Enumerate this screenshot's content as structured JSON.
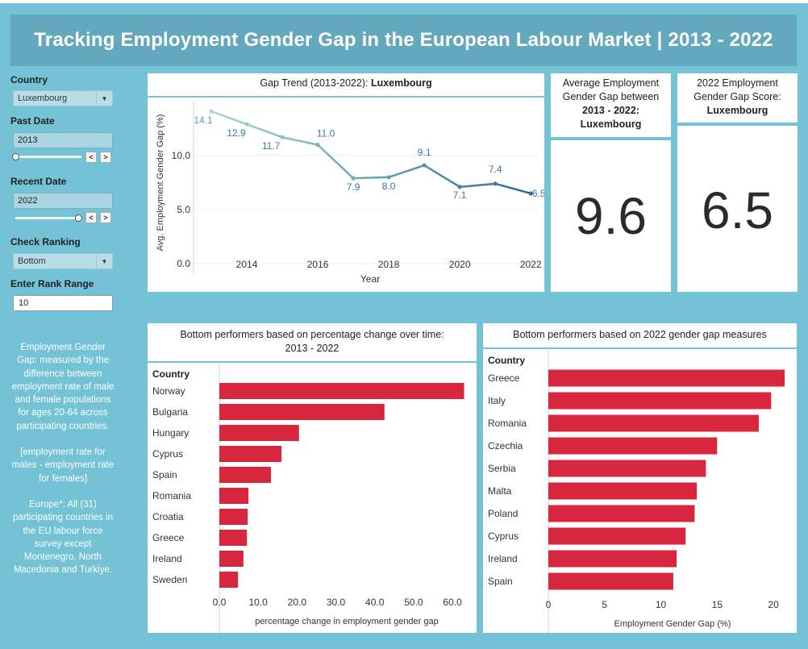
{
  "title": "Tracking Employment Gender Gap in the European Labour Market | 2013 - 2022",
  "filters": {
    "country_label": "Country",
    "country_value": "Luxembourg",
    "past_date_label": "Past Date",
    "past_date_value": "2013",
    "recent_date_label": "Recent Date",
    "recent_date_value": "2022",
    "ranking_label": "Check Ranking",
    "ranking_value": "Bottom",
    "rank_range_label": "Enter Rank Range",
    "rank_range_value": "10",
    "prev_symbol": "<",
    "next_symbol": ">",
    "caret_symbol": "▼"
  },
  "note": {
    "p1": "Employment Gender Gap: measured by the difference between employment rate of male and female populations for ages 20-64 across participating countries.",
    "p2": "[employment rate for males - employment rate for females]",
    "p3": "Europe*: All (31) participating countries in the EU labour force survey except Montenegro, North Macedonia and Turkiye."
  },
  "trend": {
    "title_prefix": "Gap Trend (2013-2022): ",
    "title_country": "Luxembourg"
  },
  "kpi_avg": {
    "title_line1": "Average Employment",
    "title_line2": "Gender Gap between",
    "title_line3": "2013 - 2022:",
    "title_line4": "Luxembourg",
    "value": "9.6"
  },
  "kpi_2022": {
    "title_line1": "2022 Employment",
    "title_line2": "Gender Gap Score:",
    "title_line3": "Luxembourg",
    "value": "6.5"
  },
  "bar_change": {
    "title_line1": "Bottom performers based on percentage change over time:",
    "title_line2": "2013 - 2022"
  },
  "bar_2022": {
    "title": "Bottom performers based on 2022  gender gap measures"
  },
  "colors": {
    "background": "#74c2d6",
    "banner": "#63a8bd",
    "bar": "#d7263d",
    "line_start": "#a6d9d8",
    "line_end": "#2e6c93"
  },
  "chart_data": [
    {
      "type": "line",
      "title": "Gap Trend (2013-2022): Luxembourg",
      "xlabel": "Year",
      "ylabel": "Avg. Employment Gender Gap (%)",
      "x": [
        2013,
        2014,
        2015,
        2016,
        2017,
        2018,
        2019,
        2020,
        2021,
        2022
      ],
      "y": [
        14.1,
        12.9,
        11.7,
        11.0,
        7.9,
        8.0,
        9.1,
        7.1,
        7.4,
        6.5
      ],
      "labels": [
        "14.1",
        "12.9",
        "11.7",
        "11.0",
        "7.9",
        "8.0",
        "9.1",
        "7.1",
        "7.4",
        "6.5"
      ],
      "xticks": [
        "2014",
        "2016",
        "2018",
        "2020",
        "2022"
      ],
      "yticks": [
        "0.0",
        "5.0",
        "10.0"
      ],
      "ylim": [
        0,
        15
      ]
    },
    {
      "type": "bar",
      "orientation": "horizontal",
      "header": "Country",
      "categories": [
        "Norway",
        "Bulgaria",
        "Hungary",
        "Cyprus",
        "Spain",
        "Romania",
        "Croatia",
        "Greece",
        "Ireland",
        "Sweden"
      ],
      "values": [
        63,
        42.5,
        20.5,
        16,
        13.3,
        7.5,
        7.3,
        7.1,
        6.2,
        4.8
      ],
      "xlabel": "percentage change in employment gender gap",
      "xticks": [
        "0.0",
        "10.0",
        "20.0",
        "30.0",
        "40.0",
        "50.0",
        "60.0"
      ],
      "xlim": [
        0,
        66
      ]
    },
    {
      "type": "bar",
      "orientation": "horizontal",
      "header": "Country",
      "categories": [
        "Greece",
        "Italy",
        "Romania",
        "Czechia",
        "Serbia",
        "Malta",
        "Poland",
        "Cyprus",
        "Ireland",
        "Spain"
      ],
      "values": [
        21.0,
        19.8,
        18.7,
        15.0,
        14.0,
        13.2,
        13.0,
        12.2,
        11.4,
        11.1
      ],
      "xlabel": "Employment Gender Gap (%)",
      "xticks": [
        "0",
        "5",
        "10",
        "15",
        "20"
      ],
      "xlim": [
        0,
        22
      ]
    }
  ]
}
